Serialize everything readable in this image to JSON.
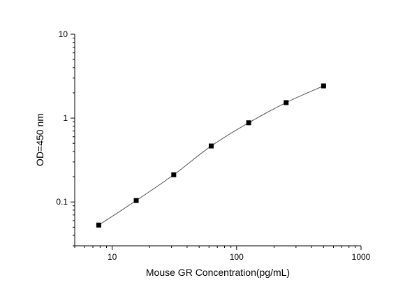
{
  "chart_data": {
    "type": "scatter",
    "title": "",
    "xlabel": "Mouse GR Concentration(pg/mL)",
    "ylabel": "OD=450 nm",
    "xscale": "log",
    "yscale": "log",
    "xlim": [
      5,
      1000
    ],
    "ylim": [
      0.03,
      10
    ],
    "grid": false,
    "legend": "none",
    "x_tick_labels": [
      "10",
      "100",
      "1000"
    ],
    "y_tick_labels": [
      "0.1",
      "1",
      "10"
    ],
    "series": [
      {
        "x": [
          7.8,
          15.6,
          31.25,
          62.5,
          125,
          250,
          500
        ],
        "y": [
          0.053,
          0.104,
          0.211,
          0.465,
          0.88,
          1.53,
          2.42
        ],
        "marker": "square",
        "line": "fitted curve"
      }
    ],
    "colors": {
      "line": "#555555",
      "marker": "#000000",
      "axis": "#000000"
    }
  }
}
